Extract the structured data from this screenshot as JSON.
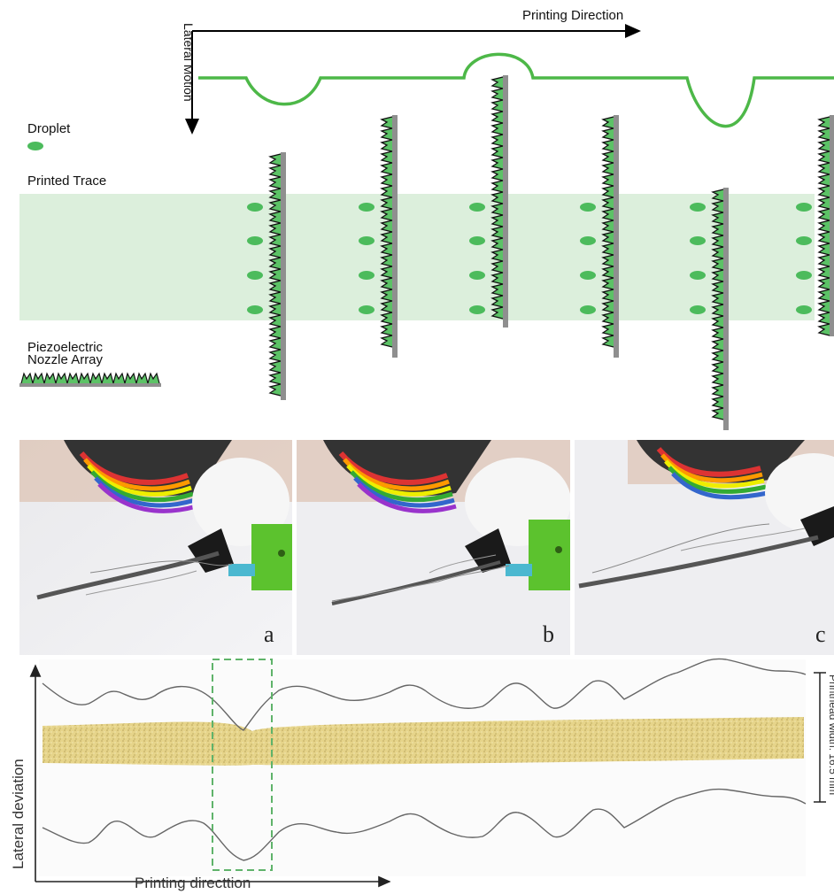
{
  "colors": {
    "motion_path": "#4db848",
    "trace_band": "#dcefdc",
    "droplet": "#4cbb5c",
    "nozzle_green": "#5cc266",
    "nozzle_bar": "#8f8f8f",
    "deposit": "#e8d68a"
  },
  "schematic": {
    "printing_direction_label": "Printing Direction",
    "lateral_motion_label": "Lateral Motion",
    "droplet_label": "Droplet",
    "printed_trace_label": "Printed Trace",
    "nozzle_label_line1": "Piezoelectric",
    "nozzle_label_line2": "Nozzle Array"
  },
  "photos": {
    "panels": [
      {
        "letter": "a"
      },
      {
        "letter": "b"
      },
      {
        "letter": "c"
      }
    ]
  },
  "deviation_plot": {
    "y_axis_label": "Lateral deviation",
    "x_axis_label": "Printing directtion",
    "width_label": "Printhead width: 16.5 mm"
  }
}
